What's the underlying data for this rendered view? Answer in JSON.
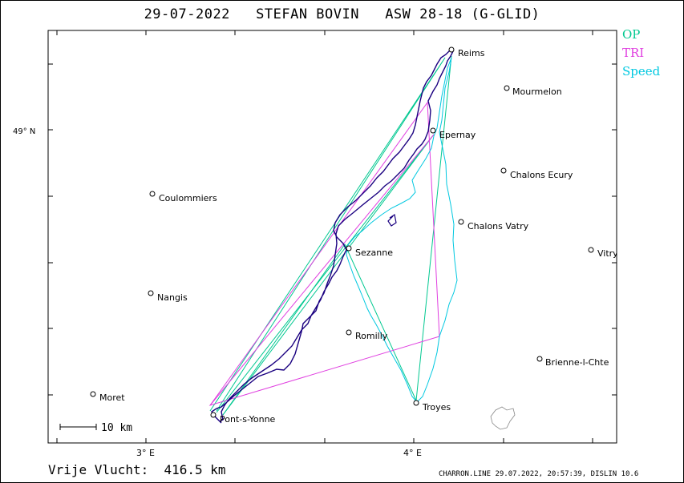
{
  "header": {
    "date": "29-07-2022",
    "pilot": "STEFAN BOVIN",
    "glider": "ASW 28-18 (G-GLID)"
  },
  "legend": {
    "op": "OP",
    "tri": "TRI",
    "speed": "Speed"
  },
  "colors": {
    "op": "#00c890",
    "tri": "#e040e0",
    "speed": "#00c8e0",
    "track": "#1a0080"
  },
  "axes": {
    "lat_label": "49° N",
    "lon_labels": [
      "3° E",
      "4° E"
    ]
  },
  "scale_bar": {
    "label": "10 km"
  },
  "places": [
    {
      "name": "Reims"
    },
    {
      "name": "Mourmelon"
    },
    {
      "name": "Epernay"
    },
    {
      "name": "Chalons Ecury"
    },
    {
      "name": "Coulommiers"
    },
    {
      "name": "Chalons Vatry"
    },
    {
      "name": "Sezanne"
    },
    {
      "name": "Vitry"
    },
    {
      "name": "Nangis"
    },
    {
      "name": "Romilly"
    },
    {
      "name": "Brienne-l-Chte"
    },
    {
      "name": "Moret"
    },
    {
      "name": "Pont-s-Yonne"
    },
    {
      "name": "Troyes"
    }
  ],
  "footer": {
    "distance": "Vrije Vlucht:  416.5 km",
    "info": "CHARRON.LINE 29.07.2022, 20:57:39, DISLIN 10.6"
  }
}
